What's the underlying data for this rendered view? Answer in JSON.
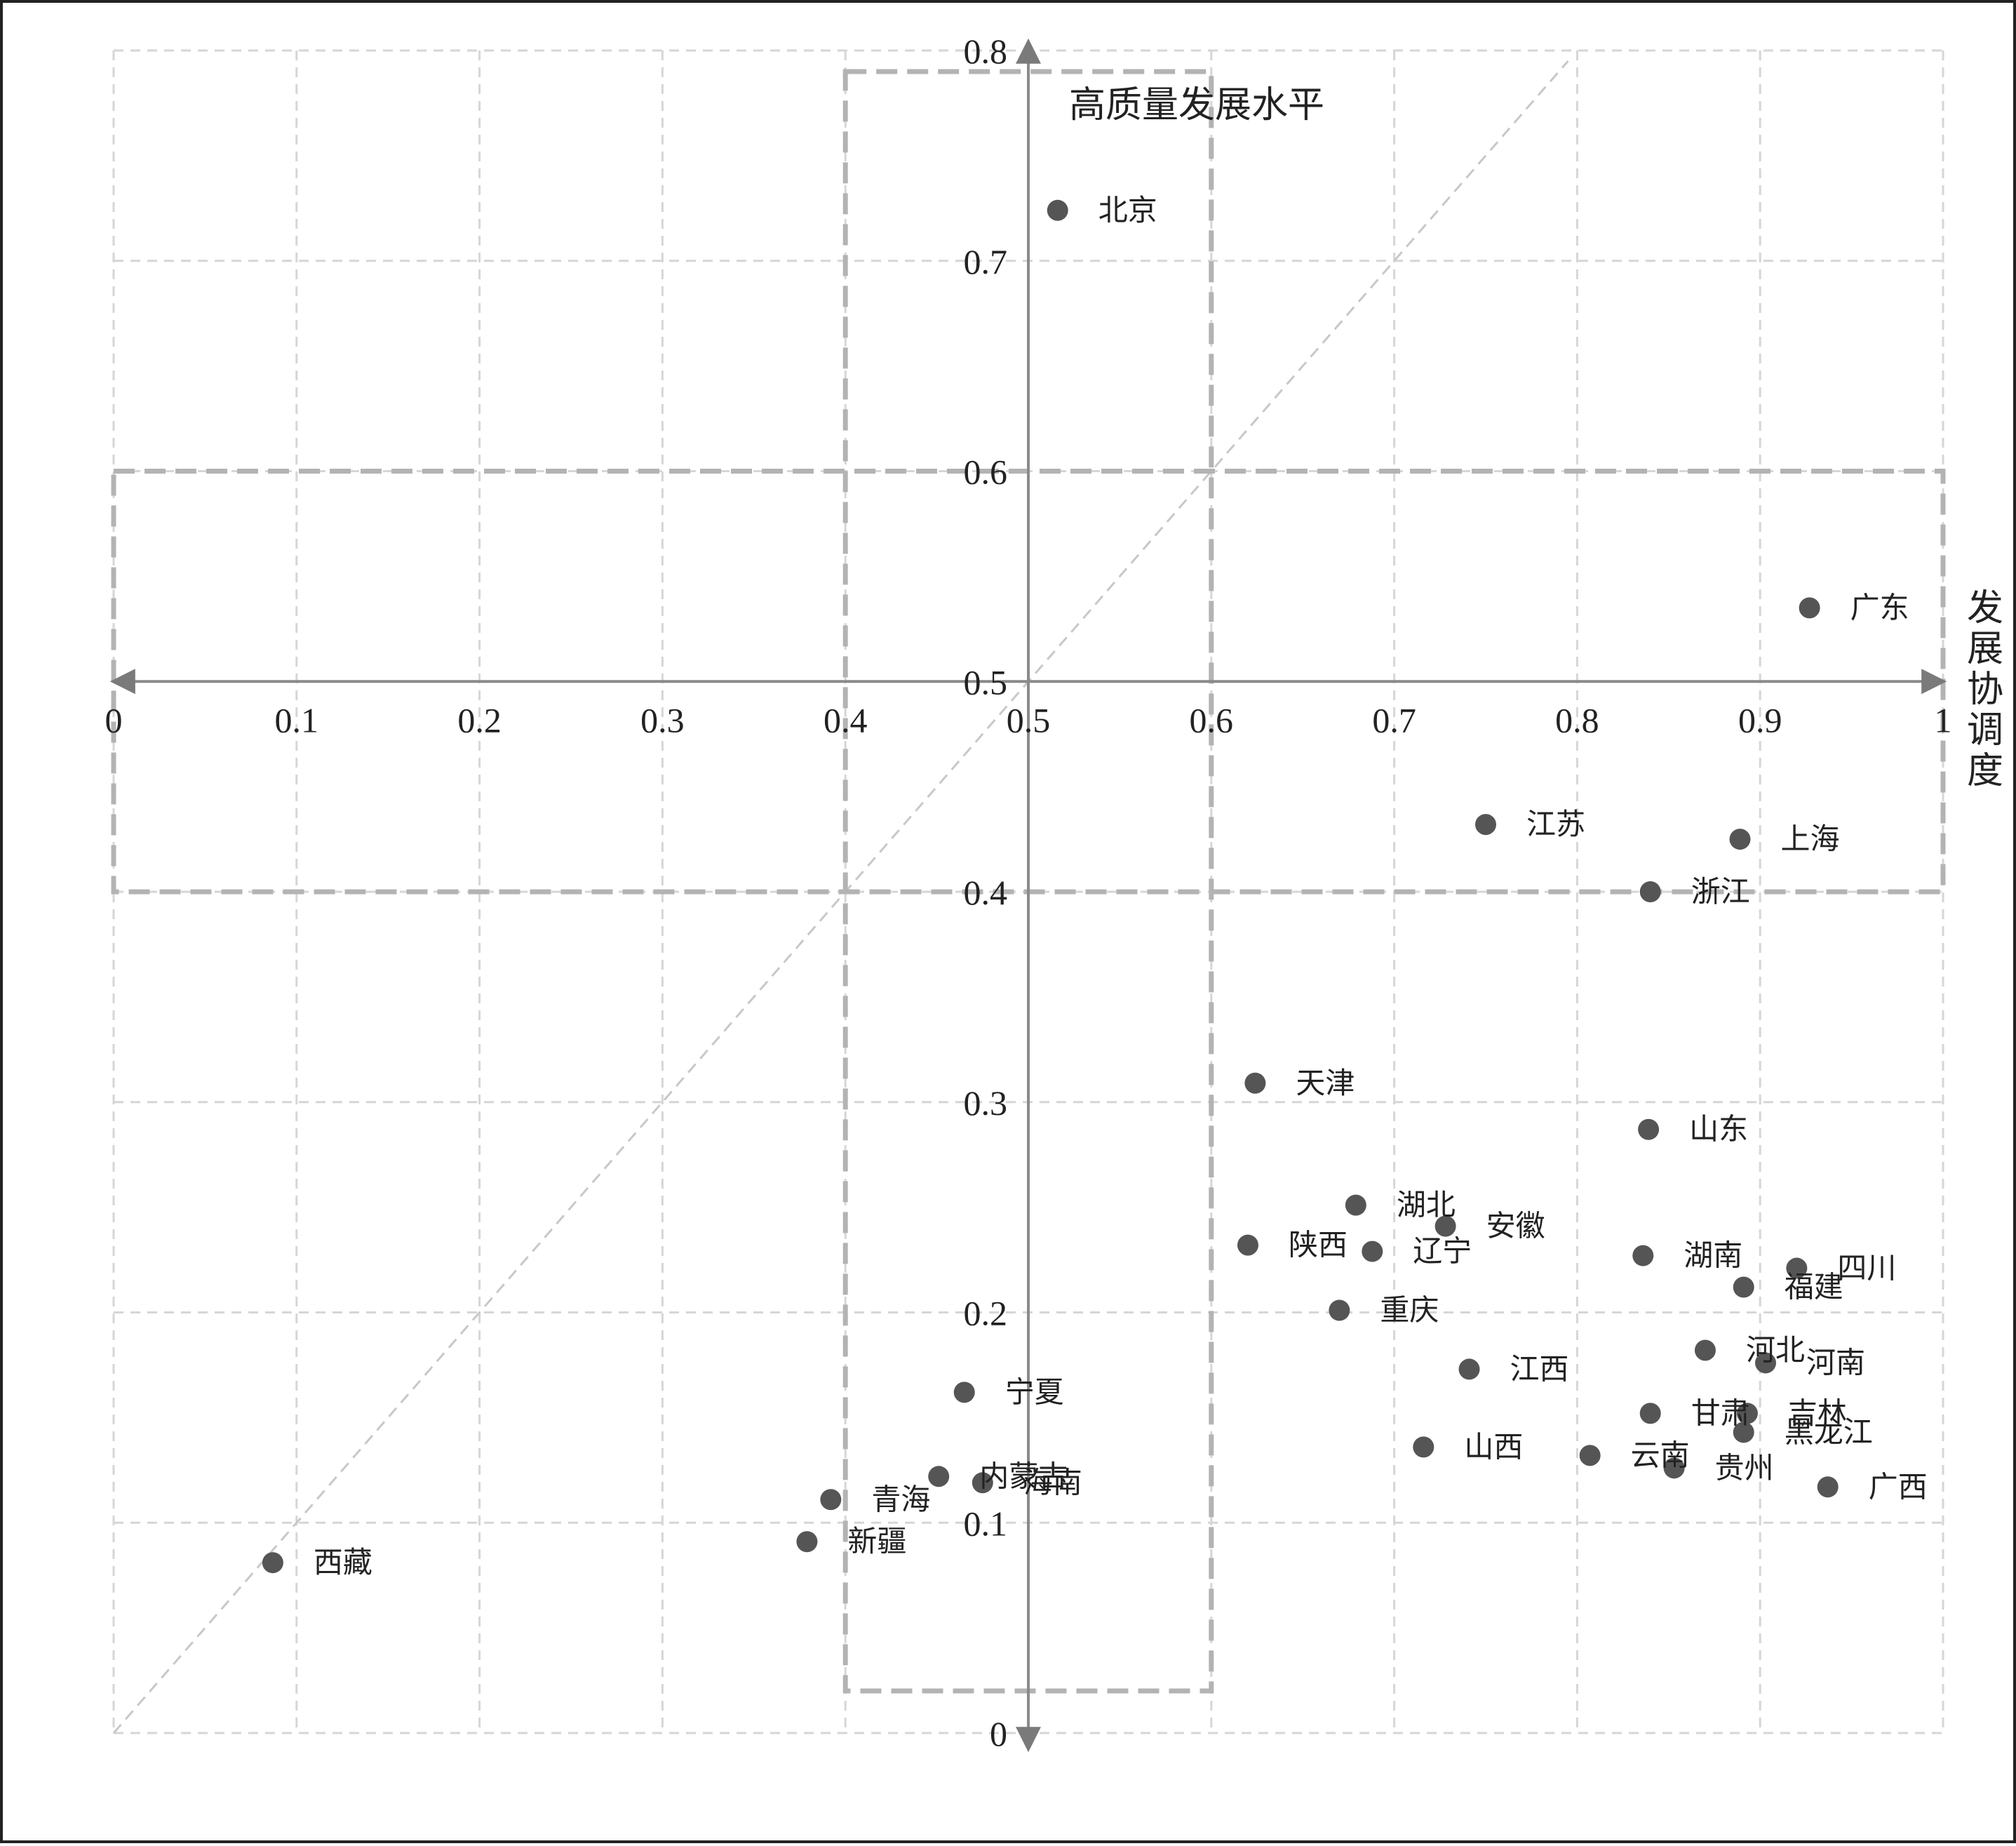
{
  "chart_data": {
    "type": "scatter",
    "y_axis_title": "高质量发展水平",
    "x_axis_title": "发展协调度",
    "xlim": [
      0,
      1
    ],
    "ylim": [
      0,
      0.8
    ],
    "x_ticks": [
      "0",
      "0.1",
      "0.2",
      "0.3",
      "0.4",
      "0.5",
      "0.6",
      "0.7",
      "0.8",
      "0.9",
      "1"
    ],
    "y_ticks": [
      "0",
      "0.1",
      "0.2",
      "0.3",
      "0.4",
      "0.5",
      "0.6",
      "0.7",
      "0.8"
    ],
    "grid": true,
    "diagonal_reference_line": true,
    "highlight_regions": [
      {
        "x": [
          0.4,
          0.6
        ],
        "y": [
          0.02,
          0.79
        ]
      },
      {
        "x": [
          0,
          1
        ],
        "y": [
          0.4,
          0.6
        ]
      }
    ],
    "points": [
      {
        "name": "北京",
        "x": 0.516,
        "y": 0.724
      },
      {
        "name": "广东",
        "x": 0.927,
        "y": 0.535
      },
      {
        "name": "江苏",
        "x": 0.75,
        "y": 0.432
      },
      {
        "name": "上海",
        "x": 0.889,
        "y": 0.425
      },
      {
        "name": "浙江",
        "x": 0.84,
        "y": 0.4
      },
      {
        "name": "天津",
        "x": 0.624,
        "y": 0.309
      },
      {
        "name": "山东",
        "x": 0.839,
        "y": 0.287
      },
      {
        "name": "湖北",
        "x": 0.679,
        "y": 0.251
      },
      {
        "name": "安徽",
        "x": 0.728,
        "y": 0.241
      },
      {
        "name": "陕西",
        "x": 0.62,
        "y": 0.232
      },
      {
        "name": "辽宁",
        "x": 0.688,
        "y": 0.229
      },
      {
        "name": "湖南",
        "x": 0.836,
        "y": 0.227
      },
      {
        "name": "四川",
        "x": 0.92,
        "y": 0.221
      },
      {
        "name": "福建",
        "x": 0.891,
        "y": 0.212
      },
      {
        "name": "重庆",
        "x": 0.67,
        "y": 0.201
      },
      {
        "name": "河北",
        "x": 0.87,
        "y": 0.182
      },
      {
        "name": "河南",
        "x": 0.903,
        "y": 0.176
      },
      {
        "name": "江西",
        "x": 0.741,
        "y": 0.173
      },
      {
        "name": "宁夏",
        "x": 0.465,
        "y": 0.162
      },
      {
        "name": "甘肃",
        "x": 0.84,
        "y": 0.152
      },
      {
        "name": "吉林",
        "x": 0.893,
        "y": 0.152
      },
      {
        "name": "黑龙江",
        "x": 0.891,
        "y": 0.143
      },
      {
        "name": "山西",
        "x": 0.716,
        "y": 0.136
      },
      {
        "name": "云南",
        "x": 0.807,
        "y": 0.132
      },
      {
        "name": "贵州",
        "x": 0.853,
        "y": 0.126
      },
      {
        "name": "内蒙古",
        "x": 0.451,
        "y": 0.122
      },
      {
        "name": "海南",
        "x": 0.475,
        "y": 0.119
      },
      {
        "name": "广西",
        "x": 0.937,
        "y": 0.117
      },
      {
        "name": "青海",
        "x": 0.392,
        "y": 0.111
      },
      {
        "name": "新疆",
        "x": 0.379,
        "y": 0.091
      },
      {
        "name": "西藏",
        "x": 0.087,
        "y": 0.081
      }
    ]
  }
}
